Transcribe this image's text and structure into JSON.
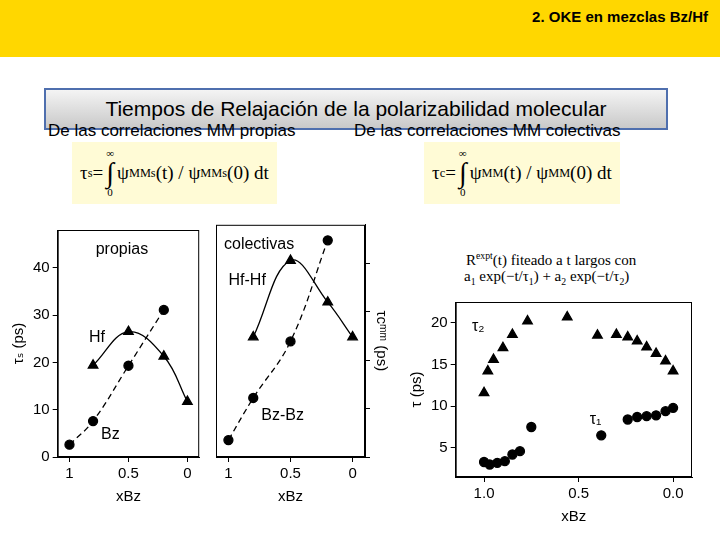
{
  "page": {
    "header": "2. OKE en mezclas Bz/Hf",
    "title": "Tiempos de Relajación de la polarizabilidad molecular",
    "left_heading": "De las correlaciones MM propias",
    "right_heading": "De las correlaciones MM colectivas",
    "formula_s": [
      {
        "t": "τ"
      },
      {
        "sub": "s"
      },
      {
        "t": " = "
      },
      {
        "int": "∫",
        "upper": "∞",
        "lower": "0"
      },
      {
        "t": "ψ"
      },
      {
        "sup": "MMs"
      },
      {
        "t": "(t) / ψ"
      },
      {
        "sup": "MMs"
      },
      {
        "t": "(0) dt"
      }
    ],
    "formula_c": [
      {
        "t": "τ"
      },
      {
        "sub": "c"
      },
      {
        "t": " = "
      },
      {
        "int": "∫",
        "upper": "∞",
        "lower": "0"
      },
      {
        "t": "ψ"
      },
      {
        "sup": "MM"
      },
      {
        "t": "(t) / ψ"
      },
      {
        "sup": "MM"
      },
      {
        "t": "(0) dt"
      }
    ],
    "fit_note": [
      {
        "t": "R"
      },
      {
        "sup": "expt"
      },
      {
        "t": "(t) fiteado a t largos con"
      }
    ],
    "fit_formula": [
      {
        "t": "a"
      },
      {
        "sub": "1"
      },
      {
        "t": " exp(−t/τ"
      },
      {
        "sub": "1"
      },
      {
        "t": ") + a"
      },
      {
        "sub": "2"
      },
      {
        "t": " exp(−t/τ"
      },
      {
        "sub": "2"
      },
      {
        "t": ")"
      }
    ]
  },
  "chart_data": [
    {
      "type": "scatter",
      "title": "propias",
      "x_label": "xBz",
      "y_label": "τₛ (ps)",
      "xlim": [
        1.1,
        -0.1
      ],
      "xticks": [
        1,
        0.5,
        0
      ],
      "ylim": [
        0,
        48
      ],
      "yticks": [
        0,
        10,
        20,
        30,
        40
      ],
      "grid": false,
      "series": [
        {
          "name": "Hf",
          "color": "#000000",
          "marker": "triangle",
          "line_style": "solid",
          "x": [
            0.8,
            0.5,
            0.2,
            0
          ],
          "values": [
            19.4,
            26.5,
            21.3,
            11.7
          ]
        },
        {
          "name": "Bz",
          "color": "#000000",
          "marker": "circle",
          "line_style": "dashed",
          "x": [
            1,
            0.8,
            0.5,
            0.2
          ],
          "values": [
            2.6,
            7.6,
            19.3,
            31.1
          ]
        }
      ]
    },
    {
      "type": "scatter",
      "title": "colectivas",
      "x_label": "xBz",
      "y_label": "τcᵐᵐ (ps)",
      "xlim": [
        1.1,
        -0.1
      ],
      "xticks": [
        1,
        0.5,
        0
      ],
      "ylim": [
        0,
        48
      ],
      "yticks": [
        0,
        10,
        20,
        30,
        40
      ],
      "grid": false,
      "tick_labels": "x",
      "series": [
        {
          "name": "Hf-Hf",
          "color": "#000000",
          "marker": "triangle",
          "line_style": "solid",
          "x": [
            0.8,
            0.5,
            0.2,
            0
          ],
          "values": [
            24.8,
            40.6,
            32.0,
            24.8
          ]
        },
        {
          "name": "Bz-Bz",
          "color": "#000000",
          "marker": "circle",
          "line_style": "dashed",
          "x": [
            1,
            0.8,
            0.5,
            0.2
          ],
          "values": [
            3.5,
            12.2,
            23.9,
            44.8
          ]
        }
      ]
    },
    {
      "type": "scatter",
      "x_label": "xBz",
      "y_label": "τ (ps)",
      "xlim": [
        1.15,
        -0.1
      ],
      "xticks": [
        {
          "value": 1,
          "label": "1.0"
        },
        {
          "value": 0.5,
          "label": "0.5"
        },
        {
          "value": 0,
          "label": "0.0"
        }
      ],
      "ylim": [
        1.5,
        22.5
      ],
      "yticks": [
        5,
        10,
        15,
        20
      ],
      "grid": false,
      "series": [
        {
          "name": "τ₂",
          "color": "#000000",
          "marker": "triangle",
          "line_style": "none",
          "x": [
            1.0,
            0.98,
            0.95,
            0.9,
            0.85,
            0.77,
            0.56,
            0.4,
            0.3,
            0.24,
            0.19,
            0.14,
            0.09,
            0.04,
            0.0
          ],
          "values": [
            11.6,
            14.2,
            15.6,
            17.0,
            18.6,
            20.2,
            20.7,
            18.5,
            18.6,
            18.3,
            17.8,
            17.1,
            16.3,
            15.4,
            14.2
          ]
        },
        {
          "name": "τ₁",
          "color": "#000000",
          "marker": "circle",
          "line_style": "none",
          "x": [
            1.0,
            0.97,
            0.93,
            0.89,
            0.85,
            0.81,
            0.75,
            0.38,
            0.24,
            0.19,
            0.14,
            0.09,
            0.04,
            0.0
          ],
          "values": [
            3.3,
            3.0,
            3.2,
            3.4,
            4.2,
            4.6,
            7.5,
            6.5,
            8.4,
            8.7,
            8.8,
            8.9,
            9.4,
            9.8
          ]
        }
      ]
    }
  ]
}
